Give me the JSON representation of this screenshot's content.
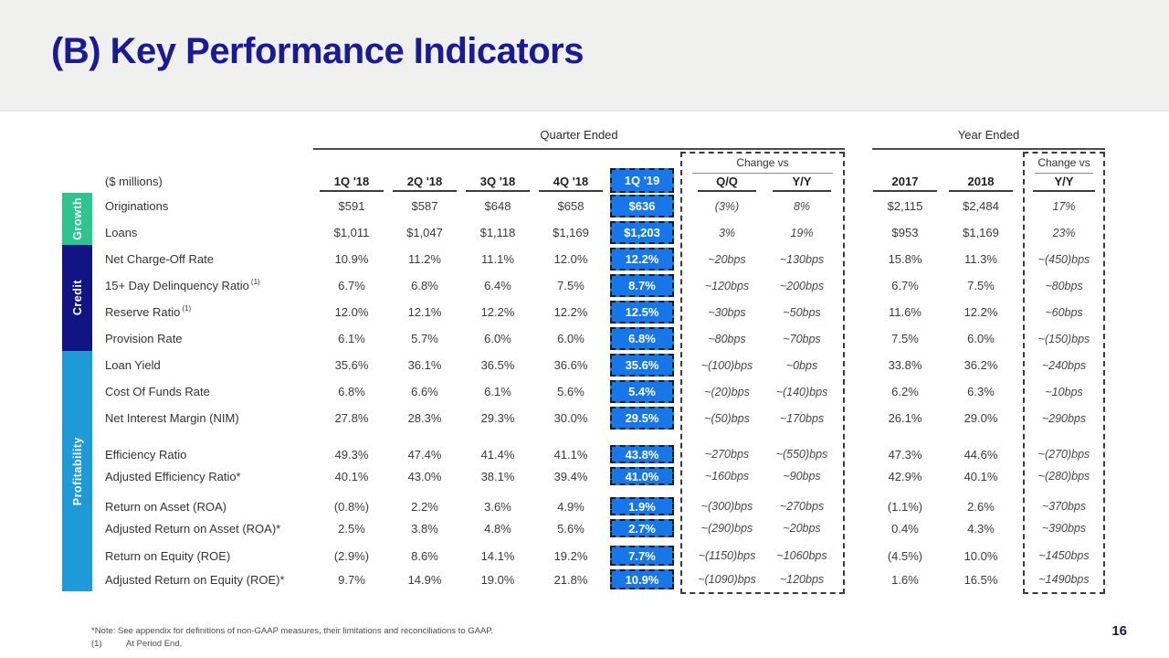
{
  "slide": {
    "title": "(B) Key Performance Indicators",
    "page_number": "16",
    "footnote_note": "*Note: See appendix for definitions of non-GAAP measures, their limitations and reconciliations to GAAP.",
    "footnote_1_marker": "(1)",
    "footnote_1_text": "At Period End."
  },
  "colors": {
    "title": "#1a1a96",
    "highlight_blue": "#1877e8",
    "growth_green": "#2cc48f",
    "credit_navy": "#121484",
    "profitability_blue": "#1e9ad9"
  },
  "table": {
    "unit_label": "($ millions)",
    "quarter_section_label": "Quarter Ended",
    "year_section_label": "Year Ended",
    "change_vs_label_quarter": "Change vs",
    "change_vs_label_year": "Change vs",
    "quarter_columns": [
      "1Q '18",
      "2Q '18",
      "3Q '18",
      "4Q '18",
      "1Q '19"
    ],
    "qoq_label": "Q/Q",
    "yoy_label": "Y/Y",
    "year_columns": [
      "2017",
      "2018"
    ],
    "year_yoy_label": "Y/Y",
    "categories": [
      {
        "name": "Growth",
        "color": "#2cc48f"
      },
      {
        "name": "Credit",
        "color": "#121484"
      },
      {
        "name": "Profitability",
        "color": "#1e9ad9"
      }
    ],
    "rows": [
      {
        "label": "Originations",
        "sup": "",
        "values": [
          "$591",
          "$587",
          "$648",
          "$658"
        ],
        "highlight": "$636",
        "qoq": "(3%)",
        "yoy": "8%",
        "y2017": "$2,115",
        "y2018": "$2,484",
        "yoy_year": "17%"
      },
      {
        "label": "Loans",
        "sup": "",
        "values": [
          "$1,011",
          "$1,047",
          "$1,118",
          "$1,169"
        ],
        "highlight": "$1,203",
        "qoq": "3%",
        "yoy": "19%",
        "y2017": "$953",
        "y2018": "$1,169",
        "yoy_year": "23%"
      },
      {
        "label": "Net Charge-Off Rate",
        "sup": "",
        "values": [
          "10.9%",
          "11.2%",
          "11.1%",
          "12.0%"
        ],
        "highlight": "12.2%",
        "qoq": "~20bps",
        "yoy": "~130bps",
        "y2017": "15.8%",
        "y2018": "11.3%",
        "yoy_year": "~(450)bps"
      },
      {
        "label": "15+ Day Delinquency Ratio",
        "sup": "(1)",
        "values": [
          "6.7%",
          "6.8%",
          "6.4%",
          "7.5%"
        ],
        "highlight": "8.7%",
        "qoq": "~120bps",
        "yoy": "~200bps",
        "y2017": "6.7%",
        "y2018": "7.5%",
        "yoy_year": "~80bps"
      },
      {
        "label": "Reserve Ratio",
        "sup": "(1)",
        "values": [
          "12.0%",
          "12.1%",
          "12.2%",
          "12.2%"
        ],
        "highlight": "12.5%",
        "qoq": "~30bps",
        "yoy": "~50bps",
        "y2017": "11.6%",
        "y2018": "12.2%",
        "yoy_year": "~60bps"
      },
      {
        "label": "Provision Rate",
        "sup": "",
        "values": [
          "6.1%",
          "5.7%",
          "6.0%",
          "6.0%"
        ],
        "highlight": "6.8%",
        "qoq": "~80bps",
        "yoy": "~70bps",
        "y2017": "7.5%",
        "y2018": "6.0%",
        "yoy_year": "~(150)bps"
      },
      {
        "label": "Loan Yield",
        "sup": "",
        "values": [
          "35.6%",
          "36.1%",
          "36.5%",
          "36.6%"
        ],
        "highlight": "35.6%",
        "qoq": "~(100)bps",
        "yoy": "~0bps",
        "y2017": "33.8%",
        "y2018": "36.2%",
        "yoy_year": "~240bps"
      },
      {
        "label": "Cost Of Funds Rate",
        "sup": "",
        "values": [
          "6.8%",
          "6.6%",
          "6.1%",
          "5.6%"
        ],
        "highlight": "5.4%",
        "qoq": "~(20)bps",
        "yoy": "~(140)bps",
        "y2017": "6.2%",
        "y2018": "6.3%",
        "yoy_year": "~10bps"
      },
      {
        "label": "Net Interest Margin (NIM)",
        "sup": "",
        "values": [
          "27.8%",
          "28.3%",
          "29.3%",
          "30.0%"
        ],
        "highlight": "29.5%",
        "qoq": "~(50)bps",
        "yoy": "~170bps",
        "y2017": "26.1%",
        "y2018": "29.0%",
        "yoy_year": "~290bps"
      },
      {
        "label": "Efficiency Ratio",
        "sup": "",
        "values": [
          "49.3%",
          "47.4%",
          "41.4%",
          "41.1%"
        ],
        "highlight": "43.8%",
        "qoq": "~270bps",
        "yoy": "~(550)bps",
        "y2017": "47.3%",
        "y2018": "44.6%",
        "yoy_year": "~(270)bps"
      },
      {
        "label": "Adjusted Efficiency Ratio*",
        "sup": "",
        "values": [
          "40.1%",
          "43.0%",
          "38.1%",
          "39.4%"
        ],
        "highlight": "41.0%",
        "qoq": "~160bps",
        "yoy": "~90bps",
        "y2017": "42.9%",
        "y2018": "40.1%",
        "yoy_year": "~(280)bps"
      },
      {
        "label": "Return on Asset (ROA)",
        "sup": "",
        "values": [
          "(0.8%)",
          "2.2%",
          "3.6%",
          "4.9%"
        ],
        "highlight": "1.9%",
        "qoq": "~(300)bps",
        "yoy": "~270bps",
        "y2017": "(1.1%)",
        "y2018": "2.6%",
        "yoy_year": "~370bps"
      },
      {
        "label": "Adjusted Return on Asset (ROA)*",
        "sup": "",
        "values": [
          "2.5%",
          "3.8%",
          "4.8%",
          "5.6%"
        ],
        "highlight": "2.7%",
        "qoq": "~(290)bps",
        "yoy": "~20bps",
        "y2017": "0.4%",
        "y2018": "4.3%",
        "yoy_year": "~390bps"
      },
      {
        "label": "Return on Equity (ROE)",
        "sup": "",
        "values": [
          "(2.9%)",
          "8.6%",
          "14.1%",
          "19.2%"
        ],
        "highlight": "7.7%",
        "qoq": "~(1150)bps",
        "yoy": "~1060bps",
        "y2017": "(4.5%)",
        "y2018": "10.0%",
        "yoy_year": "~1450bps"
      },
      {
        "label": "Adjusted Return on Equity (ROE)*",
        "sup": "",
        "values": [
          "9.7%",
          "14.9%",
          "19.0%",
          "21.8%"
        ],
        "highlight": "10.9%",
        "qoq": "~(1090)bps",
        "yoy": "~120bps",
        "y2017": "1.6%",
        "y2018": "16.5%",
        "yoy_year": "~1490bps"
      }
    ]
  }
}
